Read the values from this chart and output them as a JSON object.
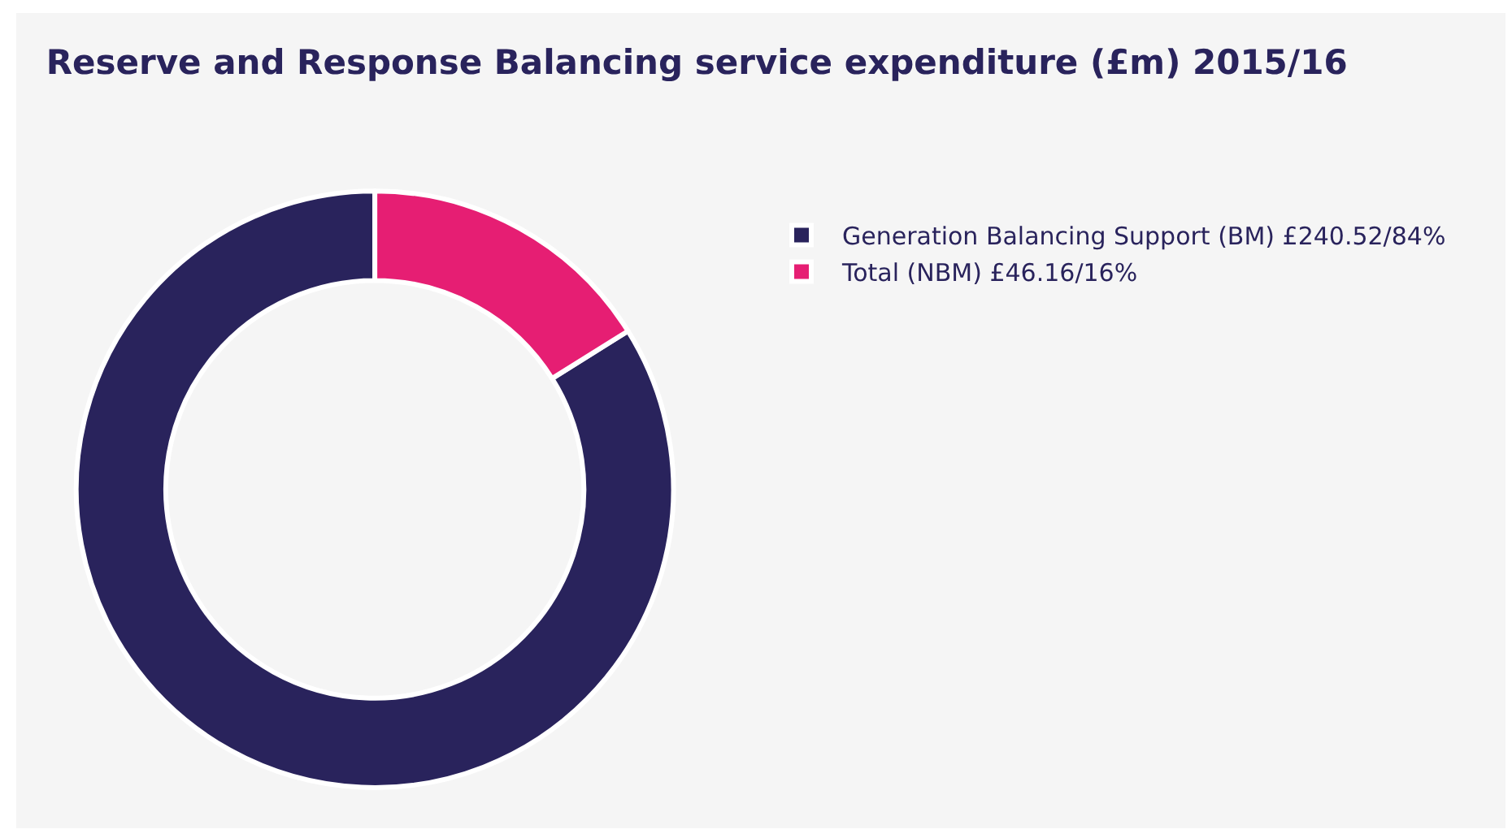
{
  "chart_data": {
    "type": "donut",
    "title": "Reserve and Response Balancing service expenditure (£m) 2015/16",
    "categories": [
      "Generation Balancing Support (BM) £240.52/84%",
      "Total (NBM) £46.16/16%"
    ],
    "values": [
      240.52,
      46.16
    ],
    "colors": [
      "#29235c",
      "#e61e73"
    ],
    "legend": "top right"
  }
}
